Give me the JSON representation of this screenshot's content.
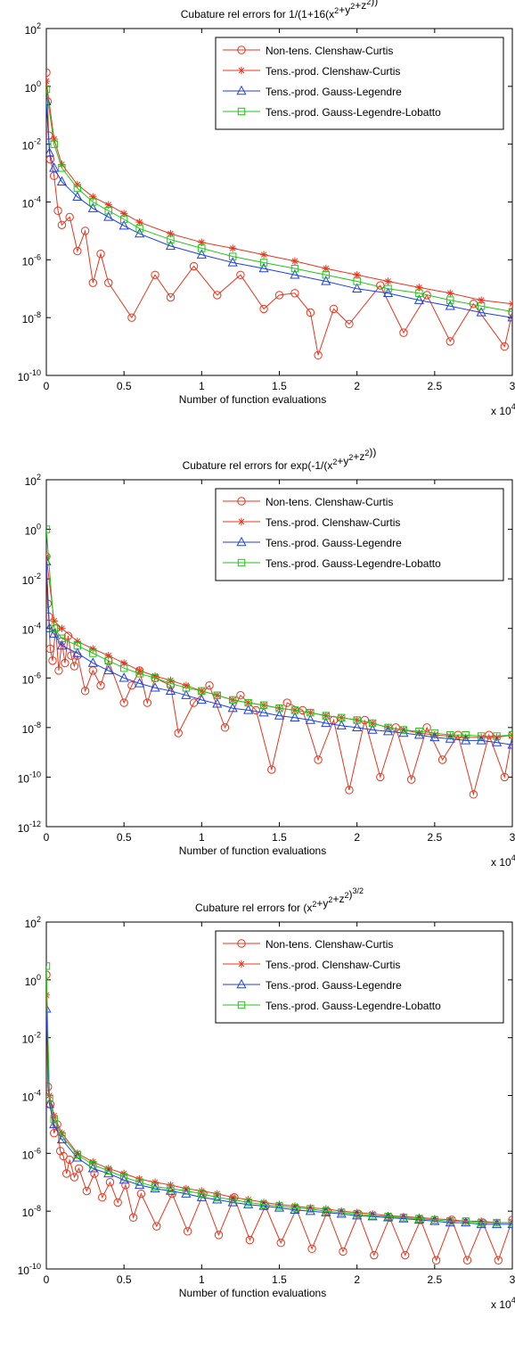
{
  "chart_data": [
    {
      "type": "line",
      "title_prefix": "Cubature rel errors for ",
      "title": "1/(1+16(x2+y2+z2))",
      "xlabel": "Number of function evaluations",
      "x_multiplier": "x 10",
      "x_multiplier_exp": "4",
      "xlim": [
        0,
        30000
      ],
      "ylim_exp": [
        -10,
        2
      ],
      "yscale": "log",
      "x_ticks": [
        "0",
        "0.5",
        "1",
        "1.5",
        "2",
        "2.5",
        "3"
      ],
      "y_ticks": [
        {
          "base": "10",
          "exp": "2"
        },
        {
          "base": "10",
          "exp": "0"
        },
        {
          "base": "10",
          "exp": "-2"
        },
        {
          "base": "10",
          "exp": "-4"
        },
        {
          "base": "10",
          "exp": "-6"
        },
        {
          "base": "10",
          "exp": "-8"
        },
        {
          "base": "10",
          "exp": "-10"
        }
      ],
      "legend_position": "top-right",
      "series": [
        {
          "name": "Non-tens. Clenshaw-Curtis",
          "color": "#e8341c",
          "marker": "circle",
          "x": [
            0,
            80,
            150,
            250,
            500,
            750,
            1000,
            1500,
            2000,
            2500,
            3000,
            3500,
            4000,
            5500,
            7000,
            8000,
            9500,
            11000,
            12500,
            14000,
            15000,
            16000,
            17000,
            17500,
            18500,
            19500,
            21500,
            23000,
            24500,
            26000,
            27500,
            29500,
            30000
          ],
          "y": [
            3.0,
            0.3,
            0.02,
            0.003,
            0.0008,
            5e-05,
            1.6e-05,
            3e-05,
            2e-06,
            1e-05,
            1.6e-07,
            1.6e-06,
            1.6e-07,
            1e-08,
            3e-07,
            5e-08,
            6e-07,
            6e-08,
            3e-07,
            2e-08,
            6e-08,
            7e-08,
            1.5e-08,
            5e-10,
            2e-08,
            6e-09,
            1.3e-07,
            3e-09,
            6e-08,
            1.5e-09,
            3e-08,
            1e-09,
            1.5e-08
          ]
        },
        {
          "name": "Tens.-prod. Clenshaw-Curtis",
          "color": "#e8341c",
          "marker": "star",
          "x": [
            0,
            500,
            1000,
            2000,
            3000,
            4000,
            5000,
            6000,
            8000,
            10000,
            12000,
            14000,
            16000,
            18000,
            20000,
            22000,
            24000,
            26000,
            28000,
            30000
          ],
          "y": [
            1.5,
            0.015,
            0.002,
            0.0004,
            0.00015,
            8e-05,
            4e-05,
            2e-05,
            8e-06,
            4e-06,
            2.5e-06,
            1.5e-06,
            9e-07,
            5e-07,
            3e-07,
            1.8e-07,
            1.1e-07,
            7e-08,
            4e-08,
            3e-08
          ]
        },
        {
          "name": "Tens.-prod. Gauss-Legendre",
          "color": "#1b3ee8",
          "marker": "triangle",
          "x": [
            0,
            200,
            500,
            1000,
            2000,
            3000,
            4000,
            5000,
            6000,
            8000,
            10000,
            12000,
            14000,
            16000,
            18000,
            20000,
            22000,
            24000,
            26000,
            28000,
            30000
          ],
          "y": [
            0.3,
            0.005,
            0.0015,
            0.0005,
            0.00015,
            6e-05,
            3e-05,
            1.5e-05,
            8e-06,
            3e-06,
            1.5e-06,
            8e-07,
            5e-07,
            3e-07,
            1.8e-07,
            1e-07,
            7e-08,
            4e-08,
            2.5e-08,
            1.5e-08,
            1e-08
          ]
        },
        {
          "name": "Tens.-prod. Gauss-Legendre-Lobatto",
          "color": "#22c418",
          "marker": "square",
          "x": [
            0,
            500,
            1000,
            2000,
            3000,
            4000,
            5000,
            6000,
            8000,
            10000,
            12000,
            14000,
            16000,
            18000,
            20000,
            22000,
            24000,
            26000,
            28000,
            30000
          ],
          "y": [
            0.8,
            0.01,
            0.0015,
            0.0003,
            0.0001,
            5e-05,
            2.5e-05,
            1.2e-05,
            5e-06,
            2.5e-06,
            1.3e-06,
            8e-07,
            5e-07,
            3e-07,
            1.8e-07,
            1e-07,
            7e-08,
            4e-08,
            2.5e-08,
            1.6e-08
          ]
        }
      ]
    },
    {
      "type": "line",
      "title_prefix": "Cubature rel errors for ",
      "title": "exp(-1/(x2+y2+z2))",
      "xlabel": "Number of function evaluations",
      "x_multiplier": "x 10",
      "x_multiplier_exp": "4",
      "xlim": [
        0,
        30000
      ],
      "ylim_exp": [
        -12,
        2
      ],
      "yscale": "log",
      "x_ticks": [
        "0",
        "0.5",
        "1",
        "1.5",
        "2",
        "2.5",
        "3"
      ],
      "y_ticks": [
        {
          "base": "10",
          "exp": "2"
        },
        {
          "base": "10",
          "exp": "0"
        },
        {
          "base": "10",
          "exp": "-2"
        },
        {
          "base": "10",
          "exp": "-4"
        },
        {
          "base": "10",
          "exp": "-6"
        },
        {
          "base": "10",
          "exp": "-8"
        },
        {
          "base": "10",
          "exp": "-10"
        },
        {
          "base": "10",
          "exp": "-12"
        }
      ],
      "legend_position": "top-right",
      "series": [
        {
          "name": "Non-tens. Clenshaw-Curtis",
          "color": "#e8341c",
          "marker": "circle",
          "x": [
            0,
            80,
            150,
            250,
            400,
            600,
            800,
            1000,
            1200,
            1400,
            1600,
            1800,
            2000,
            2500,
            3000,
            3500,
            4000,
            5000,
            5500,
            6000,
            6500,
            7000,
            8000,
            8500,
            9500,
            10500,
            11500,
            12500,
            13500,
            14500,
            15500,
            16500,
            17500,
            18500,
            19500,
            20500,
            21500,
            22500,
            23500,
            24500,
            25500,
            26500,
            27500,
            28500,
            29500,
            30000
          ],
          "y": [
            0.08,
            0.001,
            0.0003,
            1.5e-05,
            5e-06,
            0.0001,
            2e-06,
            3e-05,
            4e-06,
            5e-05,
            8e-06,
            3e-06,
            8e-06,
            3e-07,
            2e-06,
            5e-07,
            5e-06,
            1e-07,
            5e-07,
            2e-06,
            1e-07,
            1e-06,
            5e-07,
            6e-09,
            1e-07,
            5e-07,
            1e-08,
            2e-07,
            5e-08,
            2e-10,
            1e-07,
            5e-08,
            5e-10,
            2e-08,
            3e-11,
            2e-08,
            1e-10,
            1e-08,
            8e-11,
            1e-08,
            5e-10,
            5e-09,
            2e-11,
            5e-09,
            1e-10,
            5e-09
          ]
        },
        {
          "name": "Tens.-prod. Clenshaw-Curtis",
          "color": "#e8341c",
          "marker": "star",
          "x": [
            0,
            500,
            1000,
            2000,
            3000,
            4000,
            5000,
            6000,
            7000,
            8000,
            9000,
            10000,
            11000,
            12000,
            13000,
            14000,
            15000,
            16000,
            17000,
            18000,
            19000,
            20000,
            21000,
            22000,
            23000,
            24000,
            25000,
            26000,
            27000,
            28000,
            29000,
            30000
          ],
          "y": [
            0.08,
            0.0002,
            0.0001,
            3e-05,
            1.5e-05,
            8e-06,
            4e-06,
            2e-06,
            1.2e-06,
            8e-07,
            5e-07,
            3e-07,
            2e-07,
            1.3e-07,
            1e-07,
            8e-08,
            6e-08,
            5e-08,
            4e-08,
            3e-08,
            2.5e-08,
            2e-08,
            1.5e-08,
            1e-08,
            8e-09,
            6e-09,
            5e-09,
            4.5e-09,
            4e-09,
            4e-09,
            4e-09,
            5e-09
          ]
        },
        {
          "name": "Tens.-prod. Gauss-Legendre",
          "color": "#1b3ee8",
          "marker": "triangle",
          "x": [
            0,
            200,
            500,
            1000,
            2000,
            3000,
            4000,
            5000,
            6000,
            7000,
            8000,
            9000,
            10000,
            11000,
            12000,
            13000,
            14000,
            15000,
            16000,
            17000,
            18000,
            19000,
            20000,
            21000,
            22000,
            23000,
            24000,
            25000,
            26000,
            27000,
            28000,
            29000,
            30000
          ],
          "y": [
            0.05,
            0.0001,
            6e-05,
            2e-05,
            1e-05,
            4e-06,
            2e-06,
            1e-06,
            6e-07,
            4e-07,
            3e-07,
            2e-07,
            1.3e-07,
            9e-08,
            6e-08,
            5e-08,
            4e-08,
            3e-08,
            2.5e-08,
            2e-08,
            1.5e-08,
            1.2e-08,
            1e-08,
            8e-09,
            7e-09,
            6e-09,
            5e-09,
            4e-09,
            3.5e-09,
            3e-09,
            3e-09,
            2.5e-09,
            2e-09
          ]
        },
        {
          "name": "Tens.-prod. Gauss-Legendre-Lobatto",
          "color": "#22c418",
          "marker": "square",
          "x": [
            0,
            500,
            1000,
            2000,
            3000,
            4000,
            5000,
            6000,
            7000,
            8000,
            9000,
            10000,
            11000,
            12000,
            13000,
            14000,
            15000,
            16000,
            17000,
            18000,
            19000,
            20000,
            21000,
            22000,
            23000,
            24000,
            25000,
            26000,
            27000,
            28000,
            29000,
            30000
          ],
          "y": [
            1.0,
            0.0001,
            4e-05,
            2e-05,
            1e-05,
            5e-06,
            2.5e-06,
            1.5e-06,
            1e-06,
            6e-07,
            4e-07,
            3e-07,
            2e-07,
            1.3e-07,
            1e-07,
            8e-08,
            6e-08,
            5e-08,
            4e-08,
            3e-08,
            2.5e-08,
            2e-08,
            1.5e-08,
            1e-08,
            8e-09,
            7e-09,
            6e-09,
            5e-09,
            5e-09,
            4.5e-09,
            4.5e-09,
            5e-09
          ]
        }
      ]
    },
    {
      "type": "line",
      "title_prefix": "Cubature rel errors for ",
      "title": "(x2+y2+z2)3/2",
      "xlabel": "Number of function evaluations",
      "x_multiplier": "x 10",
      "x_multiplier_exp": "4",
      "xlim": [
        0,
        30000
      ],
      "ylim_exp": [
        -10,
        2
      ],
      "yscale": "log",
      "x_ticks": [
        "0",
        "0.5",
        "1",
        "1.5",
        "2",
        "2.5",
        "3"
      ],
      "y_ticks": [
        {
          "base": "10",
          "exp": "2"
        },
        {
          "base": "10",
          "exp": "0"
        },
        {
          "base": "10",
          "exp": "-2"
        },
        {
          "base": "10",
          "exp": "-4"
        },
        {
          "base": "10",
          "exp": "-6"
        },
        {
          "base": "10",
          "exp": "-8"
        },
        {
          "base": "10",
          "exp": "-10"
        }
      ],
      "legend_position": "top-right",
      "series": [
        {
          "name": "Non-tens. Clenshaw-Curtis",
          "color": "#e8341c",
          "marker": "circle",
          "x": [
            0,
            100,
            250,
            500,
            700,
            900,
            1100,
            1300,
            1500,
            1800,
            2100,
            2600,
            3100,
            3600,
            4100,
            4600,
            5100,
            5600,
            6100,
            7100,
            8100,
            9100,
            10100,
            11100,
            12100,
            13100,
            14100,
            15100,
            16100,
            17100,
            18100,
            19100,
            20100,
            21100,
            22100,
            23100,
            24100,
            25100,
            26100,
            27100,
            28100,
            29100,
            30000
          ],
          "y": [
            1.5,
            0.0002,
            5e-05,
            5e-06,
            1e-05,
            1.2e-06,
            8e-07,
            2e-07,
            6e-07,
            1.5e-07,
            3e-07,
            5e-08,
            2e-07,
            3e-08,
            1e-07,
            2e-08,
            8e-08,
            6e-09,
            4e-08,
            3e-09,
            4e-08,
            2e-09,
            4e-08,
            1.5e-09,
            3e-08,
            1e-09,
            1.5e-08,
            8e-10,
            1.2e-08,
            5e-10,
            1e-08,
            4e-10,
            8e-09,
            3e-10,
            6e-09,
            3e-10,
            5e-09,
            2e-10,
            5e-09,
            2e-10,
            4e-09,
            2e-10,
            5e-09
          ]
        },
        {
          "name": "Tens.-prod. Clenshaw-Curtis",
          "color": "#e8341c",
          "marker": "star",
          "x": [
            0,
            200,
            500,
            1000,
            2000,
            3000,
            4000,
            5000,
            6000,
            7000,
            8000,
            9000,
            10000,
            11000,
            12000,
            13000,
            14000,
            15000,
            16000,
            17000,
            18000,
            19000,
            20000,
            21000,
            22000,
            23000,
            24000,
            25000,
            26000,
            27000,
            28000,
            29000,
            30000
          ],
          "y": [
            0.3,
            0.0001,
            2e-05,
            5e-06,
            1e-06,
            5e-07,
            3e-07,
            2e-07,
            1.3e-07,
            1e-07,
            8e-08,
            6e-08,
            5e-08,
            4e-08,
            3e-08,
            2.5e-08,
            2e-08,
            1.7e-08,
            1.5e-08,
            1.3e-08,
            1.2e-08,
            1e-08,
            9e-09,
            8e-09,
            7e-09,
            6.5e-09,
            6e-09,
            5.5e-09,
            5e-09,
            4.5e-09,
            4.5e-09,
            4e-09,
            4e-09
          ]
        },
        {
          "name": "Tens.-prod. Gauss-Legendre",
          "color": "#1b3ee8",
          "marker": "triangle",
          "x": [
            0,
            200,
            500,
            1000,
            2000,
            3000,
            4000,
            5000,
            6000,
            7000,
            8000,
            9000,
            10000,
            11000,
            12000,
            13000,
            14000,
            15000,
            16000,
            17000,
            18000,
            19000,
            20000,
            21000,
            22000,
            23000,
            24000,
            25000,
            26000,
            27000,
            28000,
            29000,
            30000
          ],
          "y": [
            0.1,
            5e-05,
            1e-05,
            3e-06,
            7e-07,
            3e-07,
            2e-07,
            1.2e-07,
            8e-08,
            6e-08,
            5e-08,
            4e-08,
            3e-08,
            2.5e-08,
            2e-08,
            1.7e-08,
            1.5e-08,
            1.3e-08,
            1.1e-08,
            1e-08,
            9e-09,
            8e-09,
            7e-09,
            6.5e-09,
            6e-09,
            5.5e-09,
            5e-09,
            4.5e-09,
            4e-09,
            4e-09,
            3.5e-09,
            3.5e-09,
            3.5e-09
          ]
        },
        {
          "name": "Tens.-prod. Gauss-Legendre-Lobatto",
          "color": "#22c418",
          "marker": "square",
          "x": [
            0,
            200,
            500,
            1000,
            2000,
            3000,
            4000,
            5000,
            6000,
            7000,
            8000,
            9000,
            10000,
            11000,
            12000,
            13000,
            14000,
            15000,
            16000,
            17000,
            18000,
            19000,
            20000,
            21000,
            22000,
            23000,
            24000,
            25000,
            26000,
            27000,
            28000,
            29000,
            30000
          ],
          "y": [
            3.0,
            8e-05,
            1.5e-05,
            4e-06,
            9e-07,
            4e-07,
            2.5e-07,
            1.5e-07,
            1e-07,
            7e-08,
            6e-08,
            5e-08,
            4e-08,
            3e-08,
            2.5e-08,
            2e-08,
            1.7e-08,
            1.5e-08,
            1.3e-08,
            1.2e-08,
            1e-08,
            9e-09,
            8e-09,
            7e-09,
            6.5e-09,
            6e-09,
            5.5e-09,
            5e-09,
            4.5e-09,
            4.5e-09,
            4e-09,
            4e-09,
            4e-09
          ]
        }
      ]
    }
  ]
}
